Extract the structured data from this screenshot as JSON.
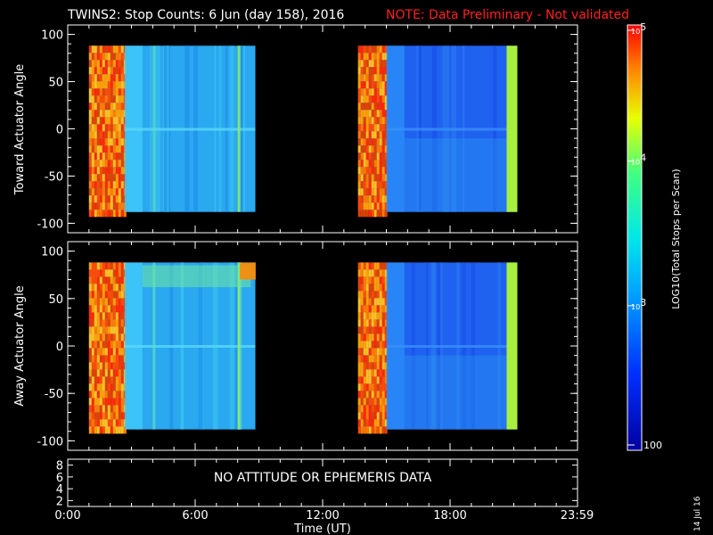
{
  "title": "TWINS2: Stop Counts:  6 Jun (day 158), 2016",
  "note": "NOTE: Data Preliminary - Not validated",
  "note_color": "#ff2020",
  "stamp": "14 Jul 16",
  "no_data_text": "NO ATTITUDE OR EPHEMERIS DATA",
  "chart_data": [
    {
      "type": "heatmap",
      "title": "",
      "ylabel": "Toward Actuator Angle",
      "ylim": [
        -110,
        110
      ],
      "yticks": [
        "100",
        "50",
        "0",
        "-50",
        "-100"
      ],
      "xlim_hours": [
        0,
        24
      ],
      "data_intervals_ut": [
        [
          "1:00",
          "8:50"
        ],
        [
          "13:40",
          "21:10"
        ]
      ],
      "y_extent": [
        -88,
        88
      ]
    },
    {
      "type": "heatmap",
      "title": "",
      "ylabel": "Away Actuator Angle",
      "ylim": [
        -110,
        110
      ],
      "yticks": [
        "100",
        "50",
        "0",
        "-50",
        "-100"
      ],
      "xlim_hours": [
        0,
        24
      ],
      "data_intervals_ut": [
        [
          "1:00",
          "8:50"
        ],
        [
          "13:40",
          "21:10"
        ]
      ],
      "y_extent": [
        -88,
        88
      ]
    },
    {
      "type": "table",
      "yticks": [
        "8",
        "6",
        "4",
        "2"
      ],
      "message": "NO ATTITUDE OR EPHEMERIS DATA"
    }
  ],
  "x_axis": {
    "xlabel": "Time (UT)",
    "ticks": [
      "0:00",
      "6:00",
      "12:00",
      "18:00",
      "23:59"
    ]
  },
  "colorbar": {
    "label": "LOG10(Total Stops per Scan)",
    "ticks": [
      "10^5",
      "10^4",
      "10^3",
      "100"
    ],
    "scale": "log",
    "range": [
      100,
      100000
    ]
  }
}
